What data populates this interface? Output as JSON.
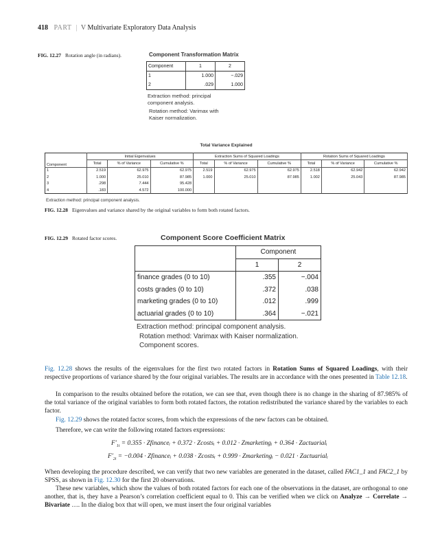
{
  "header": {
    "page_number": "418",
    "part": "PART",
    "separator": "|",
    "part_number": "V",
    "title": "Multivariate Exploratory Data Analysis"
  },
  "fig27": {
    "label": "FIG. 12.27",
    "caption": "Rotation angle (in radians).",
    "title": "Component Transformation Matrix",
    "columns": [
      "Component",
      "1",
      "2"
    ],
    "rows": [
      [
        "1",
        "1.000",
        "−.029"
      ],
      [
        "2",
        ".029",
        "1.000"
      ]
    ],
    "note1": "Extraction method: principal component analysis.",
    "note2": "Rotation method: Varimax with Kaiser normalization."
  },
  "fig28": {
    "title": "Total Variance Explained",
    "groups": [
      "Initial Eigenvalues",
      "Extraction Sums of Squared Loadings",
      "Rotation Sums of Squared Loadings"
    ],
    "row_header": "Component",
    "subcols": [
      "Total",
      "% of Variance",
      "Cumulative %",
      "Total",
      "% of Variance",
      "Cumulative %",
      "Total",
      "% of Variance",
      "Cumulative %"
    ],
    "rows": [
      [
        "1",
        "2.519",
        "62.975",
        "62.975",
        "2.519",
        "62.975",
        "62.975",
        "2.518",
        "62.942",
        "62.942"
      ],
      [
        "2",
        "1.000",
        "25.010",
        "87.985",
        "1.000",
        "25.010",
        "87.985",
        "1.002",
        "25.043",
        "87.985"
      ],
      [
        "3",
        ".298",
        "7.444",
        "95.428",
        "",
        "",
        "",
        "",
        "",
        ""
      ],
      [
        "4",
        ".183",
        "4.572",
        "100.000",
        "",
        "",
        "",
        "",
        "",
        ""
      ]
    ],
    "note": "Extraction method: principal component analysis.",
    "label": "FIG. 12.28",
    "caption": "Eigenvalues and variance shared by the original variables to form both rotated factors."
  },
  "fig29": {
    "label": "FIG. 12.29",
    "caption": "Rotated factor scores.",
    "title": "Component Score Coefficient Matrix",
    "group": "Component",
    "cols": [
      "1",
      "2"
    ],
    "rows": [
      [
        "finance grades (0 to 10)",
        ".355",
        "−.004"
      ],
      [
        "costs grades (0 to 10)",
        ".372",
        ".038"
      ],
      [
        "marketing grades (0 to 10)",
        ".012",
        ".999"
      ],
      [
        "actuarial grades (0 to 10)",
        ".364",
        "−.021"
      ]
    ],
    "note1": "Extraction method: principal  component analysis.",
    "note2": "Rotation method: Varimax with Kaiser normalization.",
    "note3": "Component scores."
  },
  "body": {
    "p1": {
      "link1": "Fig. 12.28",
      "t1": " shows the results of the eigenvalues for the first two rotated factors in ",
      "b1": "Rotation Sums of Squared Loadings",
      "t2": ", with their respective proportions of variance shared by the four original variables. The results are in accordance with the ones presented in ",
      "link2": "Table 12.18",
      "t3": "."
    },
    "p2": "In comparison to the results obtained before the rotation, we can see that, even though there is no change in the sharing of 87.985% of the total variance of the original variables to form both rotated factors, the rotation redistributed the variance shared by the variables to each factor.",
    "p3": {
      "link": "Fig. 12.29",
      "t": " shows the rotated factor scores, from which the expressions of the new factors can be obtained."
    },
    "p4": "Therefore, we can write the following rotated factors expressions:",
    "eq1": {
      "lhs": "F′",
      "sub": "1i",
      "rhs": "= 0.355 · Zfinanceᵢ + 0.372 · Zcostsᵢ + 0.012 · Zmarketingᵢ + 0.364 · Zactuarialᵢ"
    },
    "eq2": {
      "lhs": "F′",
      "sub": "2i",
      "rhs": "= −0.004 · Zfinanceᵢ + 0.038 · Zcostsᵢ + 0.999 · Zmarketingᵢ − 0.021 · Zactuarialᵢ"
    },
    "p5": {
      "t1": "When developing the procedure described, we can verify that two new variables are generated in the dataset, called ",
      "i1": "FAC1_1",
      "t2": " and ",
      "i2": "FAC2_1",
      "t3": " by SPSS, as shown in ",
      "link": "Fig. 12.30",
      "t4": " for the first 20 observations."
    },
    "p6": {
      "t1": "These new variables, which show the values of both rotated factors for each one of the observations in the dataset, are orthogonal to one another, that is, they have a Pearson’s correlation coefficient equal to 0. This can be verified when we click on ",
      "b1": "Analyze → Correlate → Bivariate",
      "t2": " …. In the dialog box that will open, we must insert the four original variables"
    }
  }
}
